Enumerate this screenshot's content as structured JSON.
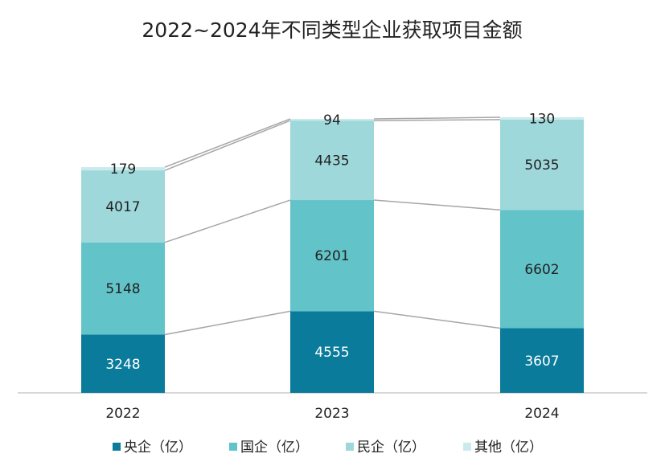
{
  "chart_data": {
    "type": "stacked-bar",
    "title": "2022~2024年不同类型企业获取项目金额",
    "categories": [
      "2022",
      "2023",
      "2024"
    ],
    "series": [
      {
        "name": "央企（亿）",
        "color": "#0b7b9b",
        "values": [
          3248,
          4555,
          3607
        ]
      },
      {
        "name": "国企（亿）",
        "color": "#62c3c9",
        "values": [
          5148,
          6201,
          6602
        ]
      },
      {
        "name": "民企（亿）",
        "color": "#9fd8db",
        "values": [
          4017,
          4435,
          5035
        ]
      },
      {
        "name": "其他（亿）",
        "color": "#c9ebec",
        "values": [
          179,
          94,
          130
        ]
      }
    ],
    "legend": "bottom"
  }
}
